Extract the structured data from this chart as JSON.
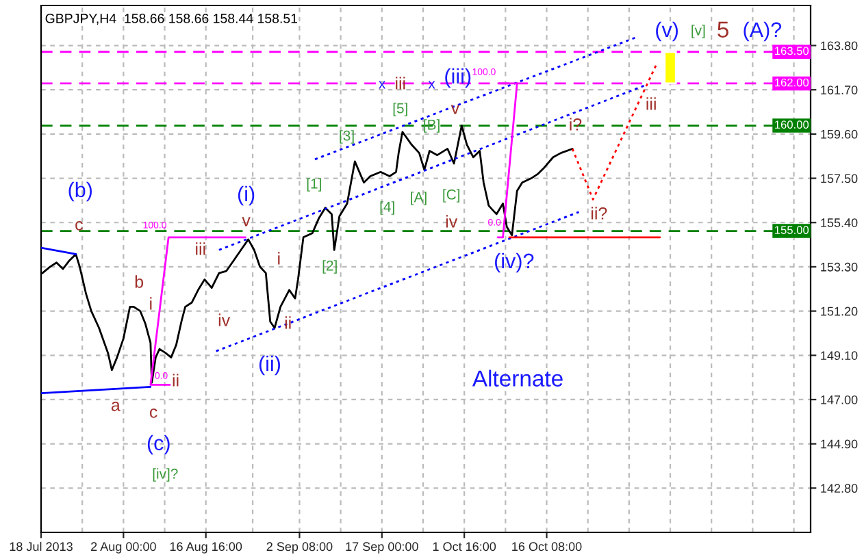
{
  "chart_data": {
    "type": "line",
    "title": "GBPJPY,H4  158.66 158.66 158.44 158.51",
    "xlim": [
      "2013-07-18T08:00",
      "2013-12-02T07:30"
    ],
    "xticks": [
      {
        "value": "2013-07-18T08:00",
        "label": "18 Jul 2013"
      },
      {
        "value": "2013-07-25T16:00",
        "label": null
      },
      {
        "value": "2013-08-02T00:00",
        "label": "2 Aug 00:00"
      },
      {
        "value": "2013-08-09T08:00",
        "label": null
      },
      {
        "value": "2013-08-16T16:00",
        "label": "16 Aug 16:00"
      },
      {
        "value": "2013-08-25T00:00",
        "label": null
      },
      {
        "value": "2013-09-02T08:00",
        "label": "2 Sep 08:00"
      },
      {
        "value": "2013-09-09T16:00",
        "label": null
      },
      {
        "value": "2013-09-17T00:00",
        "label": "17 Sep 00:00"
      },
      {
        "value": "2013-09-24T08:00",
        "label": null
      },
      {
        "value": "2013-10-01T16:00",
        "label": "1 Oct 16:00"
      },
      {
        "value": "2013-10-09T00:00",
        "label": null
      },
      {
        "value": "2013-10-16T08:00",
        "label": "16 Oct 08:00"
      },
      {
        "value": "2013-10-23T16:00",
        "label": null
      },
      {
        "value": "2013-10-31T00:00",
        "label": null
      },
      {
        "value": "2013-11-07T08:00",
        "label": null
      },
      {
        "value": "2013-11-14T16:00",
        "label": null
      },
      {
        "value": "2013-11-22T00:00",
        "label": null
      },
      {
        "value": "2013-11-29T08:00",
        "label": null
      }
    ],
    "ylim": [
      140.7,
      165.7
    ],
    "yticks": [
      {
        "value": 142.8,
        "label": "142.80"
      },
      {
        "value": 144.9,
        "label": "144.90"
      },
      {
        "value": 147.0,
        "label": "147.00"
      },
      {
        "value": 149.1,
        "label": "149.10"
      },
      {
        "value": 151.2,
        "label": "151.20"
      },
      {
        "value": 153.3,
        "label": "153.30"
      },
      {
        "value": 155.4,
        "label": "155.40"
      },
      {
        "value": 157.5,
        "label": "157.50"
      },
      {
        "value": 159.6,
        "label": "159.60"
      },
      {
        "value": 161.7,
        "label": "161.70"
      },
      {
        "value": 163.8,
        "label": "163.80"
      }
    ],
    "grid": true,
    "series": [
      {
        "color": "#000000",
        "x": [
          "2013-07-18T13:30",
          "2013-07-19T22:30",
          "2013-07-21T02:00",
          "2013-07-22T05:30",
          "2013-07-23T09:00",
          "2013-07-24T12:30",
          "2013-07-25T05:00",
          "2013-07-26T08:30",
          "2013-07-27T06:30",
          "2013-07-28T15:30",
          "2013-07-30T06:00",
          "2013-07-30T22:30",
          "2013-07-31T20:30",
          "2013-08-02T00:00",
          "2013-08-03T03:30",
          "2013-08-03T20:00",
          "2013-08-04T23:30",
          "2013-08-05T21:30",
          "2013-08-06T19:30",
          "2013-08-07T01:00",
          "2013-08-07T17:30",
          "2013-08-08T10:00",
          "2013-08-09T13:30",
          "2013-08-10T11:30",
          "2013-08-11T09:30",
          "2013-08-12T07:30",
          "2013-08-13T00:00",
          "2013-08-14T03:30",
          "2013-08-15T07:00",
          "2013-08-16T10:30",
          "2013-08-17T17:00",
          "2013-08-19T00:15",
          "2013-08-20T07:30",
          "2013-08-21T14:45",
          "2013-08-22T22:00",
          "2013-08-24T05:15",
          "2013-08-25T06:15",
          "2013-08-26T07:15",
          "2013-08-27T08:15",
          "2013-08-28T03:00",
          "2013-08-28T21:45",
          "2013-08-29T22:45",
          "2013-08-31T12:15",
          "2013-09-01T13:15",
          "2013-09-02T01:45",
          "2013-09-03T00:30",
          "2013-09-04T15:00",
          "2013-09-05T18:30",
          "2013-09-06T22:00",
          "2013-09-08T01:30",
          "2013-09-08T12:30",
          "2013-09-09T10:30",
          "2013-09-10T19:30",
          "2013-09-12T04:30",
          "2013-09-13T19:00",
          "2013-09-14T22:30",
          "2013-09-16T18:30",
          "2013-09-18T09:00",
          "2013-09-19T12:30",
          "2013-09-19T23:30",
          "2013-09-20T16:00",
          "2013-09-22T06:30",
          "2013-09-23T15:30",
          "2013-09-24T13:30",
          "2013-09-25T11:30",
          "2013-09-26T20:30",
          "2013-09-28T16:30",
          "2013-09-29T20:00",
          "2013-10-01T05:00",
          "2013-10-02T03:00",
          "2013-10-03T06:30",
          "2013-10-04T10:00",
          "2013-10-05T02:30",
          "2013-10-06T00:30",
          "2013-10-07T09:30",
          "2013-10-08T13:00",
          "2013-10-09T05:30",
          "2013-10-10T03:30",
          "2013-10-11T01:30",
          "2013-10-11T23:30",
          "2013-10-13T14:00",
          "2013-10-14T17:30",
          "2013-10-15T21:00",
          "2013-10-17T11:30",
          "2013-10-18T20:30",
          "2013-10-20T22:00"
        ],
        "values": [
          153.0,
          153.3,
          153.5,
          153.2,
          153.6,
          153.9,
          153.3,
          152.0,
          151.2,
          150.4,
          149.2,
          148.4,
          149.0,
          149.9,
          151.4,
          151.4,
          151.2,
          150.6,
          149.7,
          147.8,
          149.0,
          149.4,
          149.2,
          149.0,
          149.6,
          150.7,
          151.4,
          151.6,
          152.2,
          152.7,
          152.3,
          153.0,
          153.1,
          153.6,
          154.1,
          154.6,
          154.1,
          153.3,
          153.0,
          150.7,
          150.4,
          151.4,
          152.2,
          151.8,
          152.7,
          154.7,
          154.9,
          155.6,
          156.1,
          155.8,
          154.1,
          155.7,
          156.3,
          158.3,
          157.3,
          157.6,
          157.8,
          157.6,
          157.8,
          158.7,
          159.7,
          159.1,
          158.7,
          157.9,
          158.8,
          158.6,
          158.9,
          158.2,
          160.0,
          159.1,
          158.5,
          158.8,
          157.3,
          156.2,
          155.8,
          156.3,
          155.2,
          154.8,
          156.9,
          157.3,
          157.5,
          157.7,
          158.0,
          158.5,
          158.7,
          158.9
        ]
      },
      {
        "color": "#ff0000",
        "line_style": "dotted",
        "x": [
          "2013-10-20T22:00",
          "2013-10-24T14:00",
          "2013-11-05T01:00"
        ],
        "values": [
          158.9,
          156.5,
          163.0
        ]
      },
      {
        "color": "#0000ff",
        "line_style": "dotted",
        "x": [
          "2013-09-05T02:00",
          "2013-11-01T09:00"
        ],
        "values": [
          158.4,
          164.2
        ]
      },
      {
        "color": "#0000ff",
        "line_style": "dotted",
        "x": [
          "2013-08-19T00:15",
          "2013-11-02T18:00"
        ],
        "values": [
          154.1,
          161.9
        ]
      },
      {
        "color": "#0000ff",
        "line_style": "dotted",
        "x": [
          "2013-08-18T11:45",
          "2013-10-22T01:30"
        ],
        "values": [
          149.3,
          155.9
        ]
      },
      {
        "color": "#ff00ff",
        "line_style": "solid",
        "x": [
          "2013-08-23T16:45",
          "2013-08-10T00:30",
          "2013-08-06T19:30",
          "2013-08-10T06:00"
        ],
        "values": [
          154.7,
          154.7,
          147.7,
          147.7
        ]
      },
      {
        "color": "#ff00ff",
        "line_style": "solid",
        "x": [
          "2013-10-07T20:30",
          "2013-10-11T01:30",
          "2013-10-08T13:00",
          "2013-10-07T15:00"
        ],
        "values": [
          162.0,
          162.0,
          154.7,
          154.7
        ]
      },
      {
        "color": "#0000ff",
        "line_style": "solid",
        "x": [
          "2013-07-18T08:00",
          "2013-07-24T12:30"
        ],
        "values": [
          154.2,
          153.9
        ]
      },
      {
        "color": "#0000ff",
        "line_style": "solid",
        "x": [
          "2013-07-18T08:00",
          "2013-08-06T19:30"
        ],
        "values": [
          147.3,
          147.6
        ]
      },
      {
        "color": "#ff0000",
        "line_style": "solid",
        "x": [
          "2013-10-09T16:30",
          "2013-11-05T12:00"
        ],
        "values": [
          154.7,
          154.7
        ]
      },
      {
        "type": "bar",
        "color": "#ffff00",
        "x": [
          "2013-11-07T08:00"
        ],
        "values": [
          1.5
        ],
        "base": [
          162.0
        ]
      }
    ],
    "ref_lines": [
      {
        "axis": "y",
        "value": 163.5,
        "label": "163.50",
        "color": "#ff00ff",
        "line_style": "dashed"
      },
      {
        "axis": "y",
        "value": 162.0,
        "label": "162.00",
        "color": "#ff00ff",
        "line_style": "dashed"
      },
      {
        "axis": "y",
        "value": 160.0,
        "label": "160.00",
        "color": "#008000",
        "line_style": "dashed"
      },
      {
        "axis": "y",
        "value": 155.0,
        "label": "155.00",
        "color": "#008000",
        "line_style": "dashed"
      }
    ],
    "annotations": [
      "Alternate",
      "(b)",
      "c",
      "b",
      "i",
      "a",
      "c",
      "(c)",
      "[iv]?",
      "ii",
      "iii",
      "iv",
      "(i)",
      "v",
      "i",
      "ii",
      "(ii)",
      "[1]",
      "[2]",
      "[3]",
      "[4]",
      "[5]",
      "[A]",
      "[B]",
      "[C]",
      "iv",
      "x",
      "iii",
      "x",
      "(iii)",
      "v",
      "(iv)?",
      "i?",
      "ii?",
      "iii",
      "(v)",
      "[v]",
      "5",
      "(A)?",
      "100.0",
      "100.0",
      "0.0",
      "0.0"
    ]
  }
}
